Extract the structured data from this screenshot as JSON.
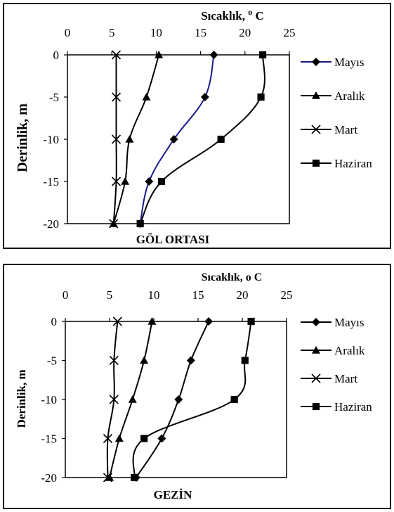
{
  "chart_data": [
    {
      "type": "line",
      "title": "GÖL ORTASI",
      "xlabel": "Sıcaklık, ",
      "xlabel_sup": "o",
      "xlabel_unit": " C",
      "ylabel": "Derinlik, m",
      "xlim": [
        0,
        25
      ],
      "ylim": [
        -20,
        0
      ],
      "xticks": [
        "0",
        "5",
        "10",
        "15",
        "20",
        "25"
      ],
      "yticks": [
        "0",
        "-5",
        "-10",
        "-15",
        "-20"
      ],
      "legend_position": "right",
      "y": [
        0,
        -5,
        -10,
        -15,
        -20
      ],
      "series": [
        {
          "name": "Mayıs",
          "marker": "diamond",
          "color": "#000000",
          "line_color": "#1a1a8c",
          "values": [
            16.5,
            15.5,
            12,
            9.2,
            8.2
          ]
        },
        {
          "name": "Aralık",
          "marker": "triangle",
          "color": "#000000",
          "line_color": "#000000",
          "values": [
            10.3,
            8.9,
            7,
            6.5,
            5.2
          ]
        },
        {
          "name": "Mart",
          "marker": "x",
          "color": "#000000",
          "line_color": "#000000",
          "values": [
            5.5,
            5.5,
            5.5,
            5.5,
            5.2
          ]
        },
        {
          "name": "Haziran",
          "marker": "square",
          "color": "#000000",
          "line_color": "#000000",
          "values": [
            22,
            21.8,
            17.3,
            10.6,
            8.2
          ]
        }
      ]
    },
    {
      "type": "line",
      "title": "GEZİN",
      "xlabel": "Sıcaklık, o C",
      "ylabel": "Derinlik, m",
      "xlim": [
        0,
        25
      ],
      "ylim": [
        -20,
        0
      ],
      "xticks": [
        "0",
        "5",
        "10",
        "15",
        "20",
        "25"
      ],
      "yticks": [
        "0",
        "-5",
        "-10",
        "-15",
        "-20"
      ],
      "legend_position": "right",
      "y": [
        0,
        -5,
        -10,
        -15,
        -20
      ],
      "series": [
        {
          "name": "Mayıs",
          "marker": "diamond",
          "color": "#000000",
          "line_color": "#000000",
          "values": [
            16.2,
            14.2,
            12.8,
            10.9,
            8
          ]
        },
        {
          "name": "Aralık",
          "marker": "triangle",
          "color": "#000000",
          "line_color": "#000000",
          "values": [
            9.8,
            8.9,
            7.6,
            6.1,
            5
          ]
        },
        {
          "name": "Mart",
          "marker": "x",
          "color": "#000000",
          "line_color": "#000000",
          "values": [
            5.9,
            5.5,
            5.5,
            4.8,
            4.8
          ]
        },
        {
          "name": "Haziran",
          "marker": "square",
          "color": "#000000",
          "line_color": "#000000",
          "values": [
            21,
            20.3,
            19.1,
            8.9,
            7.8
          ]
        }
      ]
    }
  ]
}
